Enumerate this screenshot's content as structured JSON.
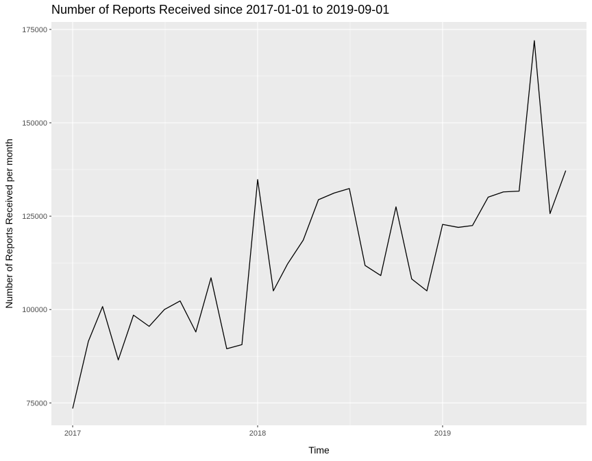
{
  "chart_data": {
    "type": "line",
    "title": "Number of Reports Received since 2017-01-01 to 2019-09-01",
    "xlabel": "Time",
    "ylabel": "Number of Reports Received per month",
    "xlim": [
      "2016-11-20",
      "2019-10-12"
    ],
    "ylim": [
      69000,
      177000
    ],
    "x_ticks": [
      {
        "value": "2017-01-01",
        "label": "2017"
      },
      {
        "value": "2018-01-01",
        "label": "2018"
      },
      {
        "value": "2019-01-01",
        "label": "2019"
      }
    ],
    "y_ticks": [
      {
        "value": 75000,
        "label": "75000"
      },
      {
        "value": 100000,
        "label": "100000"
      },
      {
        "value": 125000,
        "label": "125000"
      },
      {
        "value": 150000,
        "label": "150000"
      },
      {
        "value": 175000,
        "label": "175000"
      }
    ],
    "grid": true,
    "legend": "none",
    "colors": {
      "panel": "#ebebeb",
      "grid": "#ffffff",
      "line": "#000000",
      "tick_text": "#4d4d4d"
    },
    "series": [
      {
        "x": [
          "2017-01-01",
          "2017-02-01",
          "2017-03-01",
          "2017-04-01",
          "2017-05-01",
          "2017-06-01",
          "2017-07-01",
          "2017-08-01",
          "2017-09-01",
          "2017-10-01",
          "2017-11-01",
          "2017-12-01",
          "2018-01-01",
          "2018-02-01",
          "2018-03-01",
          "2018-04-01",
          "2018-05-01",
          "2018-06-01",
          "2018-07-01",
          "2018-08-01",
          "2018-09-01",
          "2018-10-01",
          "2018-11-01",
          "2018-12-01",
          "2019-01-01",
          "2019-02-01",
          "2019-03-01",
          "2019-04-01",
          "2019-05-01",
          "2019-06-01",
          "2019-07-01",
          "2019-08-01",
          "2019-09-01"
        ],
        "values": [
          73500,
          91500,
          100800,
          86500,
          98500,
          95500,
          100000,
          102300,
          94000,
          108500,
          89500,
          90600,
          134800,
          105000,
          112200,
          118600,
          129400,
          131200,
          132400,
          111800,
          109100,
          127500,
          108200,
          105000,
          122800,
          122000,
          122500,
          130100,
          131500,
          131700,
          172000,
          125700,
          137200
        ]
      }
    ]
  }
}
